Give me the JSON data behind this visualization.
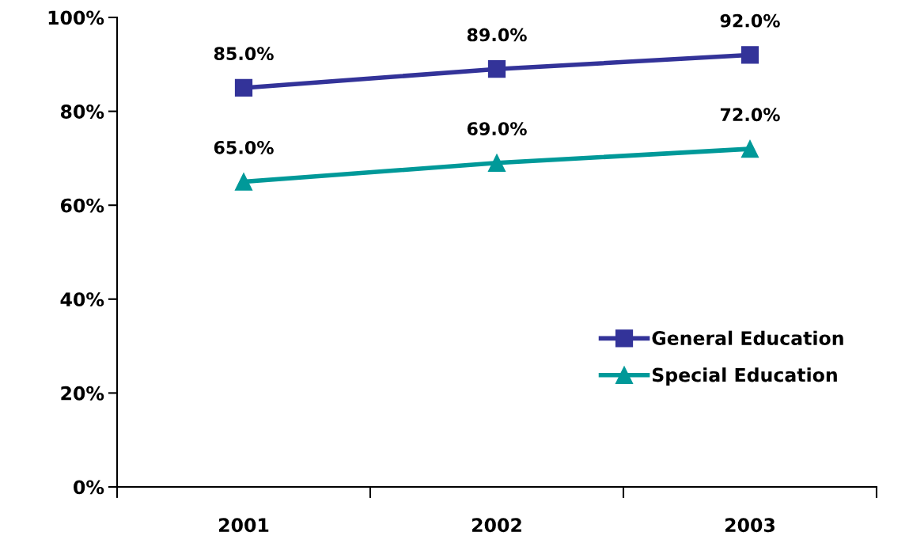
{
  "chart_data": {
    "type": "line",
    "categories": [
      "2001",
      "2002",
      "2003"
    ],
    "series": [
      {
        "name": "General Education",
        "color": "#333399",
        "marker": "square",
        "values": [
          85,
          89,
          92
        ],
        "value_labels": [
          "85.0%",
          "89.0%",
          "92.0%"
        ]
      },
      {
        "name": "Special Education",
        "color": "#009999",
        "marker": "triangle",
        "values": [
          65,
          69,
          72
        ],
        "value_labels": [
          "65.0%",
          "69.0%",
          "72.0%"
        ]
      }
    ],
    "ylim": [
      0,
      100
    ],
    "yticks": [
      {
        "value": 0,
        "label": "0%"
      },
      {
        "value": 20,
        "label": "20%"
      },
      {
        "value": 40,
        "label": "40%"
      },
      {
        "value": 60,
        "label": "60%"
      },
      {
        "value": 80,
        "label": "80%"
      },
      {
        "value": 100,
        "label": "100%"
      }
    ],
    "grid": false,
    "legend": "bottom right",
    "line_style": "solid"
  }
}
